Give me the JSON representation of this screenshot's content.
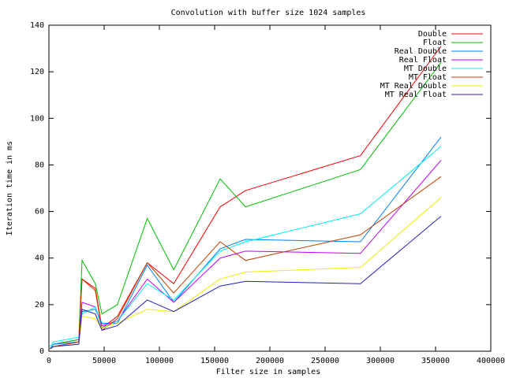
{
  "chart_data": {
    "type": "line",
    "title": "Convolution with buffer size 1024 samples",
    "x_label": "Filter size in samples",
    "y_label": "Iteration time in ms",
    "x": [
      1024,
      4096,
      27000,
      30000,
      42000,
      48000,
      62000,
      89000,
      113000,
      155000,
      178000,
      282000,
      355000
    ],
    "series": [
      {
        "name": "Double",
        "color": "#ff0000",
        "values": [
          1,
          3,
          5,
          31,
          27,
          10,
          15,
          38,
          29,
          62,
          69,
          84,
          131
        ]
      },
      {
        "name": "Float",
        "color": "#00c000",
        "values": [
          1,
          3,
          5,
          39,
          29,
          16,
          20,
          57,
          35,
          74,
          62,
          78,
          124
        ]
      },
      {
        "name": "Real Double",
        "color": "#0080ff",
        "values": [
          1,
          3,
          4,
          17,
          18,
          12,
          12,
          37,
          21,
          44,
          48,
          47,
          92
        ]
      },
      {
        "name": "Real Float",
        "color": "#c000ff",
        "values": [
          1,
          2,
          4,
          21,
          19,
          11,
          13,
          31,
          21,
          40,
          43,
          42,
          82
        ]
      },
      {
        "name": "MT Double",
        "color": "#00eeee",
        "values": [
          2,
          4,
          6,
          16,
          19,
          10,
          13,
          29,
          22,
          43,
          47,
          59,
          88
        ]
      },
      {
        "name": "MT Float",
        "color": "#c04000",
        "values": [
          1,
          2,
          4,
          31,
          26,
          9,
          14,
          38,
          25,
          47,
          39,
          50,
          75
        ]
      },
      {
        "name": "MT Real Double",
        "color": "#eeee00",
        "values": [
          1,
          2,
          3,
          15,
          14,
          10,
          12,
          18,
          17,
          31,
          34,
          36,
          66
        ]
      },
      {
        "name": "MT Real Float",
        "color": "#2020c0",
        "values": [
          1,
          2,
          3,
          18,
          16,
          9,
          11,
          22,
          17,
          28,
          30,
          29,
          58
        ]
      }
    ],
    "xlim": [
      0,
      400000
    ],
    "ylim": [
      0,
      140
    ],
    "xticks": [
      0,
      50000,
      100000,
      150000,
      200000,
      250000,
      300000,
      350000,
      400000
    ],
    "yticks": [
      0,
      20,
      40,
      60,
      80,
      100,
      120,
      140
    ],
    "grid": false,
    "legend": "top-right"
  }
}
